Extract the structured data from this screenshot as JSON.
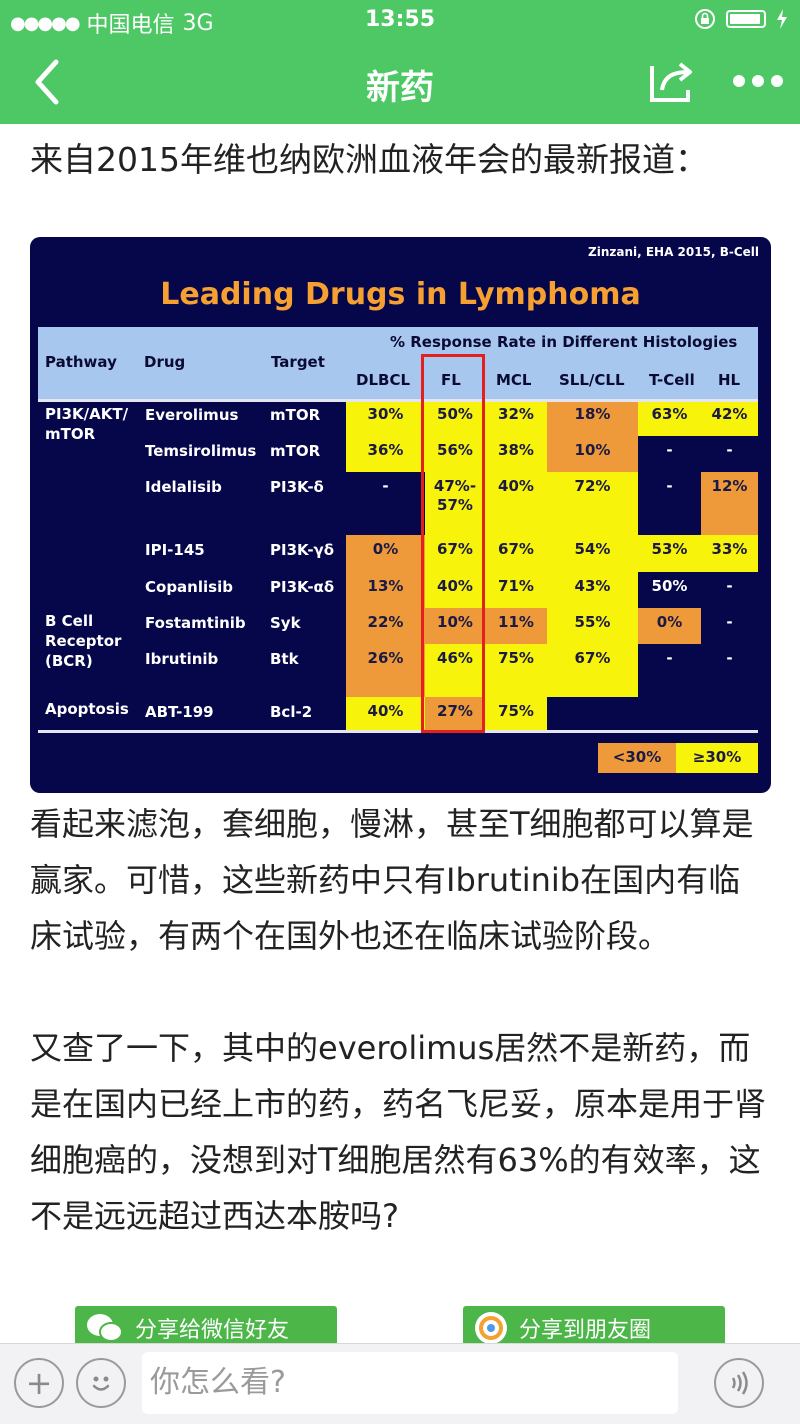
{
  "status": {
    "carrier": "中国电信",
    "network": "3G",
    "time": "13:55"
  },
  "nav": {
    "title": "新药"
  },
  "article": {
    "intro": "来自2015年维也纳欧洲血液年会的最新报道：",
    "para1": "看起来滤泡，套细胞，慢淋，甚至T细胞都可以算是赢家。可惜，这些新药中只有Ibrutinib在国内有临床试验，有两个在国外也还在临床试验阶段。",
    "para2": "又查了一下，其中的everolimus居然不是新药，而是在国内已经上市的药，药名飞尼妥，原本是用于肾细胞癌的，没想到对T细胞居然有63%的有效率，这不是远远超过西达本胺吗?"
  },
  "slide": {
    "citation": "Zinzani, EHA 2015, B-Cell",
    "title": "Leading Drugs in Lymphoma",
    "header": {
      "pathway": "Pathway",
      "drug": "Drug",
      "target": "Target",
      "group": "% Response Rate in Different Histologies",
      "cols": [
        "DLBCL",
        "FL",
        "MCL",
        "SLL/CLL",
        "T-Cell",
        "HL"
      ]
    },
    "pathways": [
      "PI3K/AKT/\nmTOR",
      "B Cell\nReceptor\n(BCR)",
      "Apoptosis"
    ],
    "rows": [
      {
        "drug": "Everolimus",
        "target": "mTOR",
        "values": [
          "30%",
          "50%",
          "32%",
          "18%",
          "63%",
          "42%"
        ]
      },
      {
        "drug": "Temsirolimus",
        "target": "mTOR",
        "values": [
          "36%",
          "56%",
          "38%",
          "10%",
          "-",
          "-"
        ]
      },
      {
        "drug": "Idelalisib",
        "target": "PI3K-δ",
        "values": [
          "-",
          "47%-\n57%",
          "40%",
          "72%",
          "-",
          "12%"
        ]
      },
      {
        "drug": "IPI-145",
        "target": "PI3K-γδ",
        "values": [
          "0%",
          "67%",
          "67%",
          "54%",
          "53%",
          "33%"
        ]
      },
      {
        "drug": "Copanlisib",
        "target": "PI3K-αδ",
        "values": [
          "13%",
          "40%",
          "71%",
          "43%",
          "50%",
          "-"
        ]
      },
      {
        "drug": "Fostamtinib",
        "target": "Syk",
        "values": [
          "22%",
          "10%",
          "11%",
          "55%",
          "0%",
          "-"
        ]
      },
      {
        "drug": "Ibrutinib",
        "target": "Btk",
        "values": [
          "26%",
          "46%",
          "75%",
          "67%",
          "-",
          "-"
        ]
      },
      {
        "drug": "ABT-199",
        "target": "Bcl-2",
        "values": [
          "40%",
          "27%",
          "75%",
          "",
          "",
          ""
        ]
      }
    ],
    "legend": {
      "low": "<30%",
      "high": "≥30%"
    },
    "colors": {
      "high": "#f7f30a",
      "low": "#ee9a3a",
      "background": "#06064b"
    }
  },
  "share": {
    "wechat": "分享给微信好友",
    "moments": "分享到朋友圈"
  },
  "bottombar": {
    "placeholder": "你怎么看?"
  },
  "colors": {
    "brand": "#4dc865"
  }
}
